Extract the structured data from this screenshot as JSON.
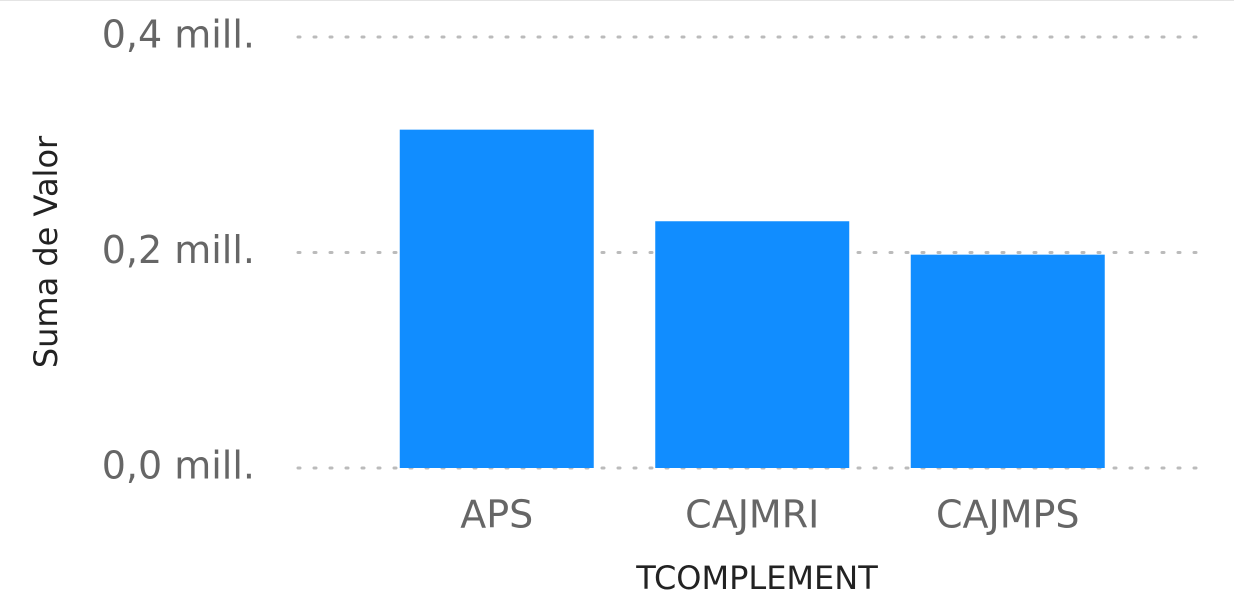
{
  "chart_data": {
    "type": "bar",
    "x_label": "TCOMPLEMENT",
    "y_label": "Suma de Valor",
    "categories": [
      "APS",
      "CAJMRI",
      "CAJMPS"
    ],
    "values": [
      314000,
      229000,
      198000
    ],
    "color": "#118dff",
    "ylim": [
      0,
      400000
    ],
    "yticks": [
      {
        "value": 0,
        "label": "0,0 mill."
      },
      {
        "value": 200000,
        "label": "0,2 mill."
      },
      {
        "value": 400000,
        "label": "0,4 mill."
      }
    ],
    "grid": true
  }
}
